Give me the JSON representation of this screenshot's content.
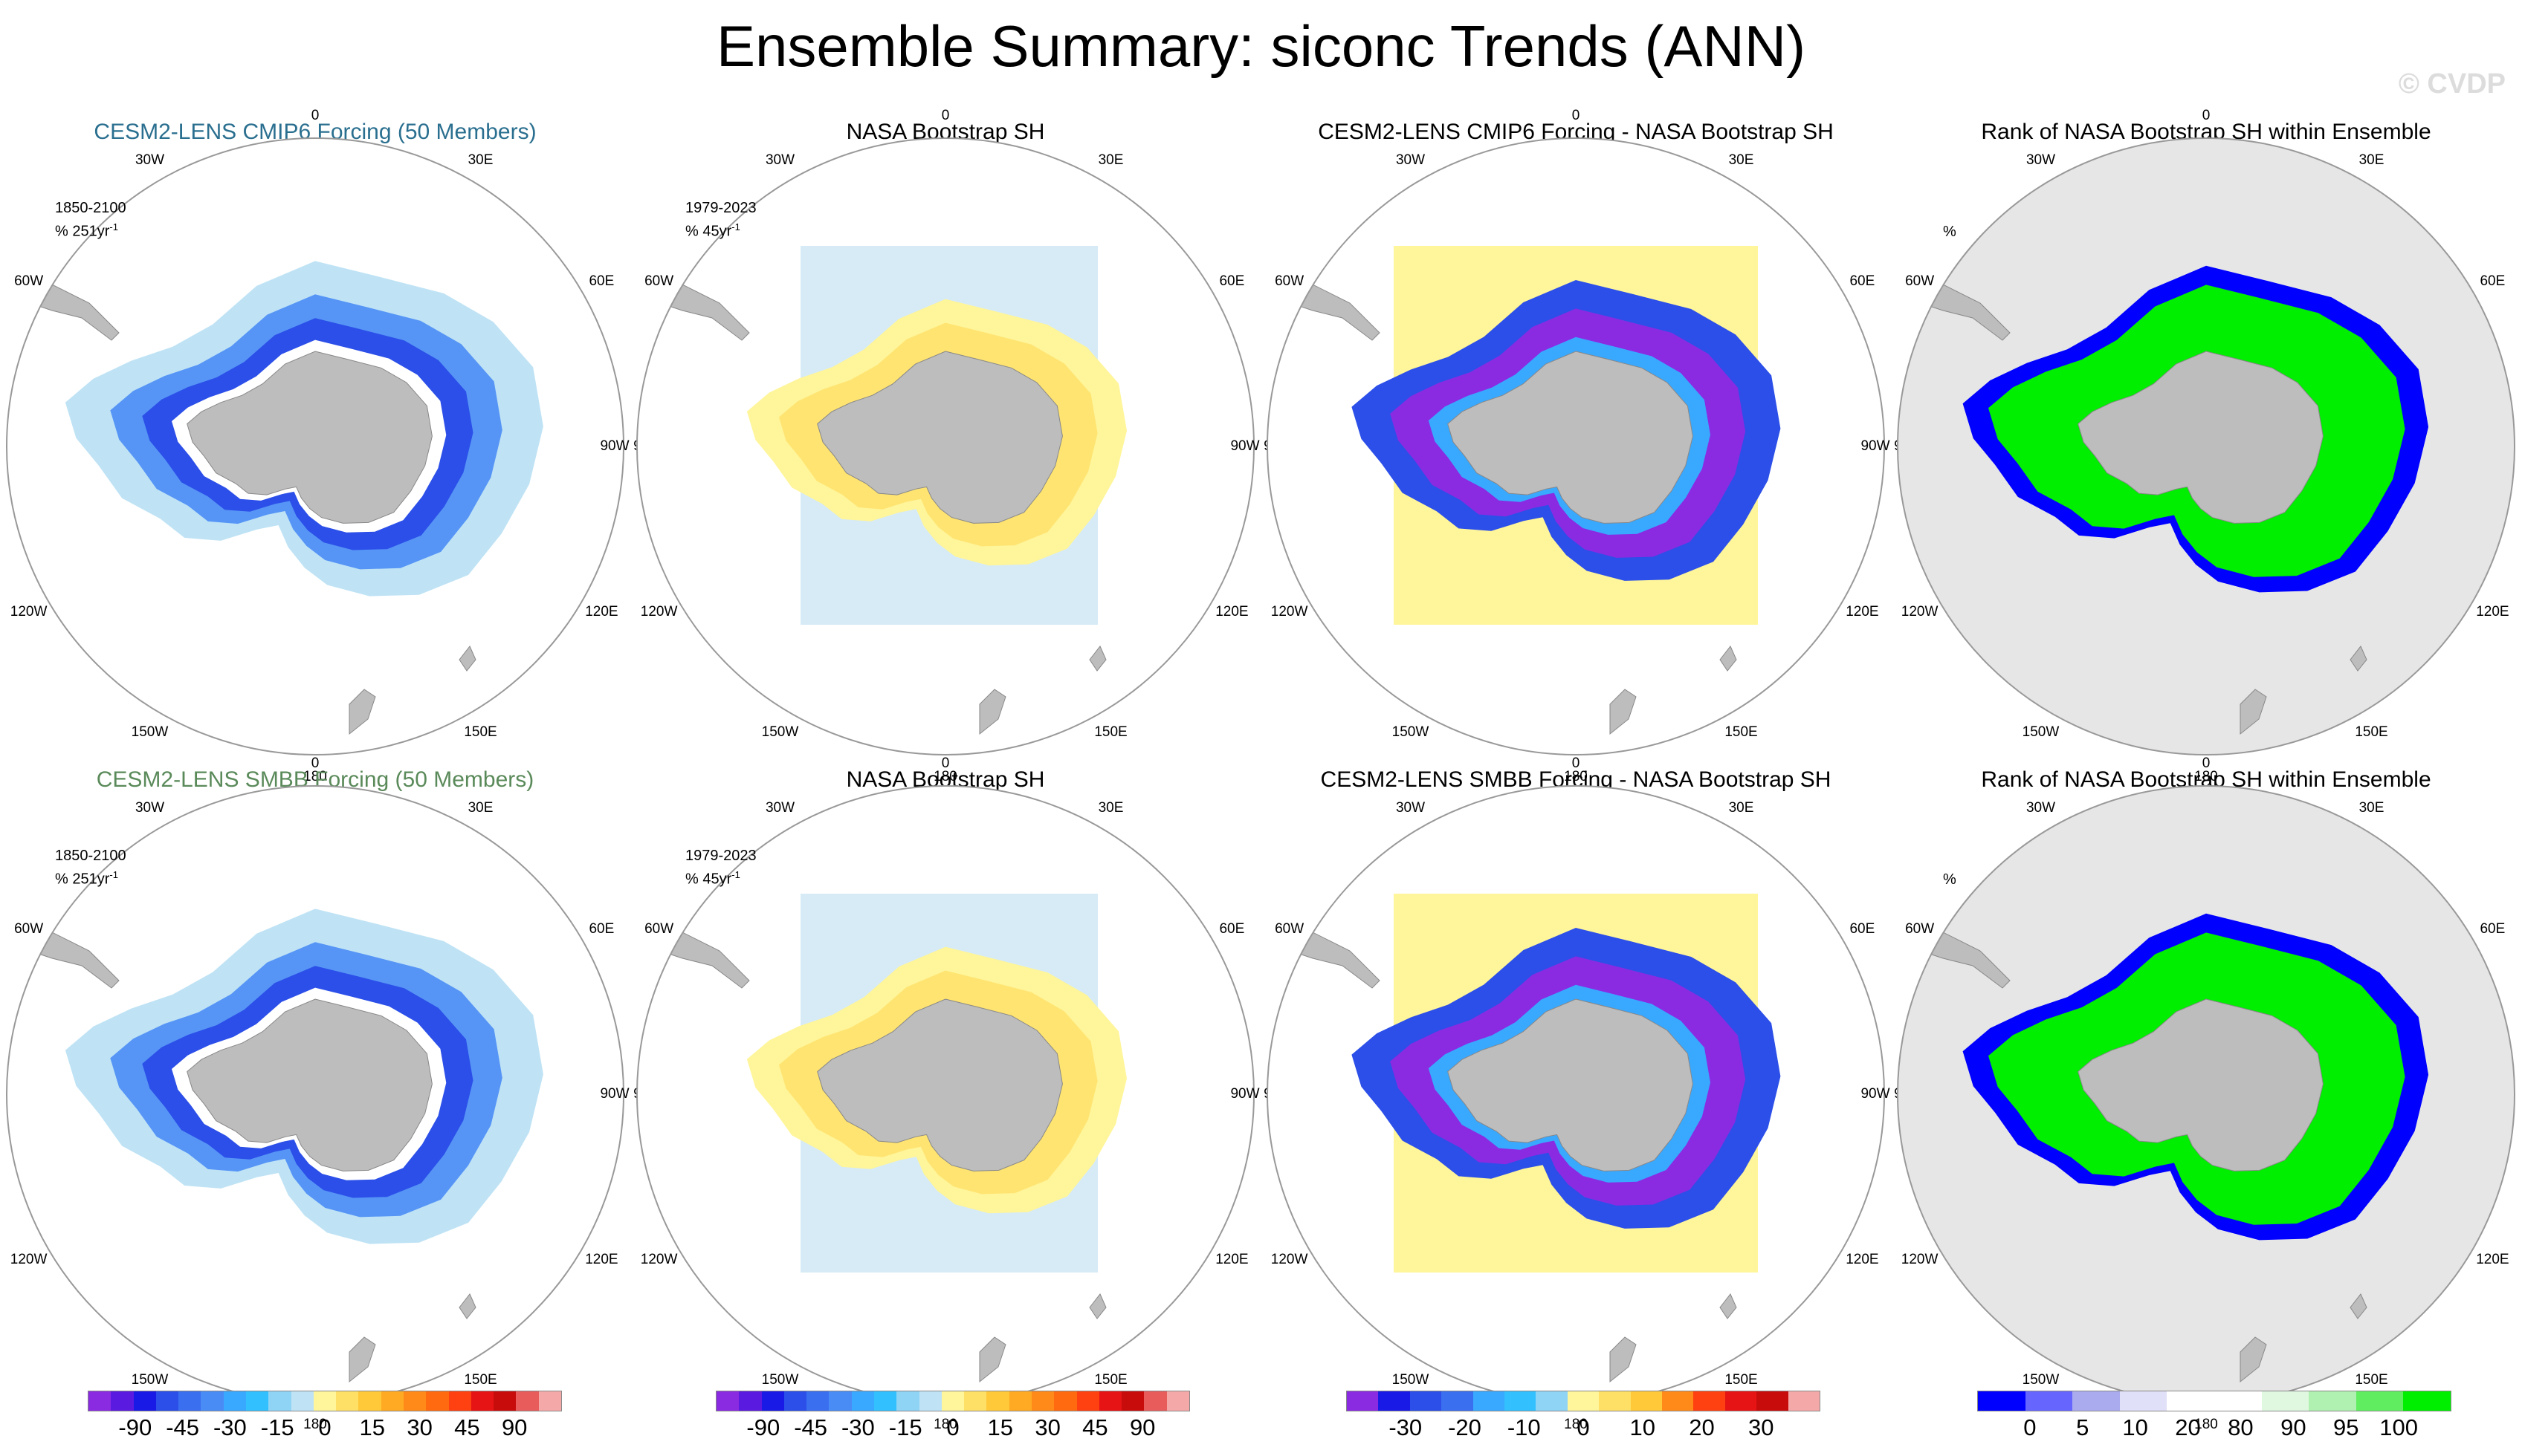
{
  "title": "Ensemble Summary: siconc Trends (ANN)",
  "watermark": "© CVDP",
  "panels": [
    {
      "title": "CESM2-LENS CMIP6 Forcing (50 Members)",
      "title_color": "#2a6f8f",
      "period": "1850-2100",
      "units": "% 251yr",
      "kind": "model"
    },
    {
      "title": "NASA Bootstrap SH",
      "title_color": "#000000",
      "period": "1979-2023",
      "units": "% 45yr",
      "kind": "obs"
    },
    {
      "title": "CESM2-LENS CMIP6 Forcing - NASA Bootstrap SH",
      "title_color": "#000000",
      "period": "",
      "units": "",
      "kind": "diff"
    },
    {
      "title": "Rank of NASA Bootstrap SH within Ensemble",
      "title_color": "#000000",
      "period": "",
      "units": "%",
      "kind": "rank"
    },
    {
      "title": "CESM2-LENS SMBB Forcing (50 Members)",
      "title_color": "#5a8a5a",
      "period": "1850-2100",
      "units": "% 251yr",
      "kind": "model"
    },
    {
      "title": "NASA Bootstrap SH",
      "title_color": "#000000",
      "period": "1979-2023",
      "units": "% 45yr",
      "kind": "obs"
    },
    {
      "title": "CESM2-LENS SMBB Forcing - NASA Bootstrap SH",
      "title_color": "#000000",
      "period": "",
      "units": "",
      "kind": "diff"
    },
    {
      "title": "Rank of NASA Bootstrap SH within Ensemble",
      "title_color": "#000000",
      "period": "",
      "units": "%",
      "kind": "rank"
    }
  ],
  "longitude_labels": [
    "0",
    "30E",
    "60E",
    "90E",
    "120E",
    "150E",
    "180",
    "150W",
    "120W",
    "90W",
    "60W",
    "30W"
  ],
  "exponent_label": "-1",
  "colorbars": [
    {
      "labels": [
        "-90",
        "-45",
        "-30",
        "-15",
        "0",
        "15",
        "30",
        "45",
        "90"
      ],
      "colors": [
        "#8a2be2",
        "#5a1ae0",
        "#1a1ae6",
        "#2b4fe8",
        "#3a6ff0",
        "#4a8cf6",
        "#39a8ff",
        "#33c0ff",
        "#8fd3f5",
        "#bfe3f5",
        "#fff59a",
        "#ffe066",
        "#ffc93a",
        "#ffaa22",
        "#ff8a1a",
        "#ff6a10",
        "#ff4010",
        "#e61414",
        "#c80c0c",
        "#e85c5c",
        "#f5a8a8"
      ]
    },
    {
      "labels": [
        "-90",
        "-45",
        "-30",
        "-15",
        "0",
        "15",
        "30",
        "45",
        "90"
      ],
      "colors": [
        "#8a2be2",
        "#5a1ae0",
        "#1a1ae6",
        "#2b4fe8",
        "#3a6ff0",
        "#4a8cf6",
        "#39a8ff",
        "#33c0ff",
        "#8fd3f5",
        "#bfe3f5",
        "#fff59a",
        "#ffe066",
        "#ffc93a",
        "#ffaa22",
        "#ff8a1a",
        "#ff6a10",
        "#ff4010",
        "#e61414",
        "#c80c0c",
        "#e85c5c",
        "#f5a8a8"
      ]
    },
    {
      "labels": [
        "-30",
        "-20",
        "-10",
        "0",
        "10",
        "20",
        "30"
      ],
      "colors": [
        "#8a2be2",
        "#1a1ae6",
        "#2b4fe8",
        "#3a6ff0",
        "#39a8ff",
        "#33c0ff",
        "#8fd3f5",
        "#fff59a",
        "#ffe066",
        "#ffc93a",
        "#ff8a1a",
        "#ff4010",
        "#e61414",
        "#c80c0c",
        "#f5a8a8"
      ]
    },
    {
      "labels": [
        "0",
        "5",
        "10",
        "20",
        "80",
        "90",
        "95",
        "100"
      ],
      "colors": [
        "#0000ff",
        "#6666ff",
        "#aaaaee",
        "#e0e0f8",
        "#ffffff",
        "#ffffff",
        "#e0f8e0",
        "#b0f0b0",
        "#60ee60",
        "#00ee00"
      ]
    }
  ]
}
